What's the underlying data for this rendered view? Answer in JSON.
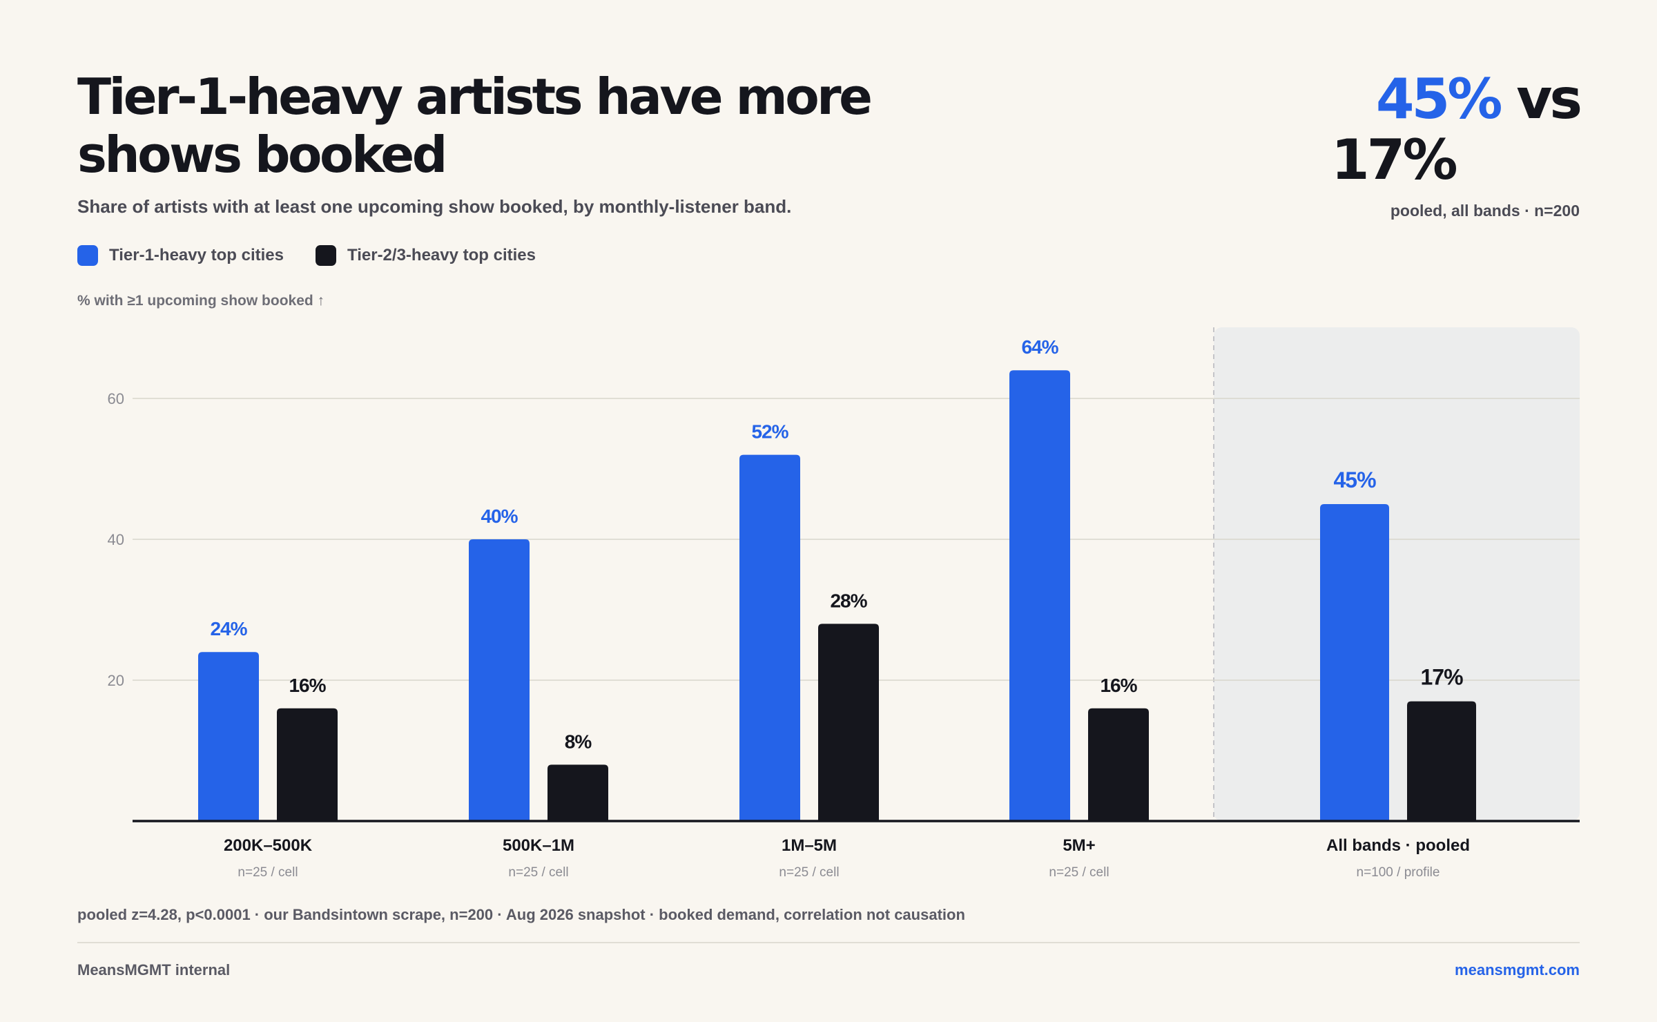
{
  "header": {
    "title": "Tier-1-heavy artists have more shows booked",
    "subtitle": "Share of artists with at least one upcoming show booked, by monthly-listener band."
  },
  "kpi": {
    "value_a": "45%",
    "connector": "vs",
    "value_b": "17%",
    "note": "pooled, all bands · n=200"
  },
  "legend": {
    "tier1_label": "Tier-1-heavy top cities",
    "tier23_label": "Tier-2/3-heavy top cities"
  },
  "colors": {
    "tier1": "#2563e8",
    "tier23": "#15161d",
    "background": "#f9f6f0",
    "pooled_panel": "#eceded"
  },
  "chart_data": {
    "type": "bar",
    "ylabel": "% with ≥1 upcoming show booked ↑",
    "ylim": [
      0,
      68
    ],
    "yticks": [
      20,
      40,
      60
    ],
    "grid": true,
    "legend_position": "top-left",
    "categories": [
      "200K–500K",
      "500K–1M",
      "1M–5M",
      "5M+",
      "All bands · pooled"
    ],
    "category_notes": [
      "n=25 / cell",
      "n=25 / cell",
      "n=25 / cell",
      "n=25 / cell",
      "n=100 / profile"
    ],
    "highlighted_category": "All bands · pooled",
    "series": [
      {
        "name": "Tier-1-heavy top cities",
        "values": [
          24,
          40,
          52,
          64,
          45
        ],
        "labels": [
          "24%",
          "40%",
          "52%",
          "64%",
          "45%"
        ]
      },
      {
        "name": "Tier-2/3-heavy top cities",
        "values": [
          16,
          8,
          28,
          16,
          17
        ],
        "labels": [
          "16%",
          "8%",
          "28%",
          "16%",
          "17%"
        ]
      }
    ]
  },
  "footer": {
    "footnote": "pooled z=4.28, p<0.0001 · our Bandsintown scrape, n=200 · Aug 2026 snapshot · booked demand, correlation not causation",
    "brand_left": "MeansMGMT internal",
    "brand_right": "meansmgmt.com"
  }
}
